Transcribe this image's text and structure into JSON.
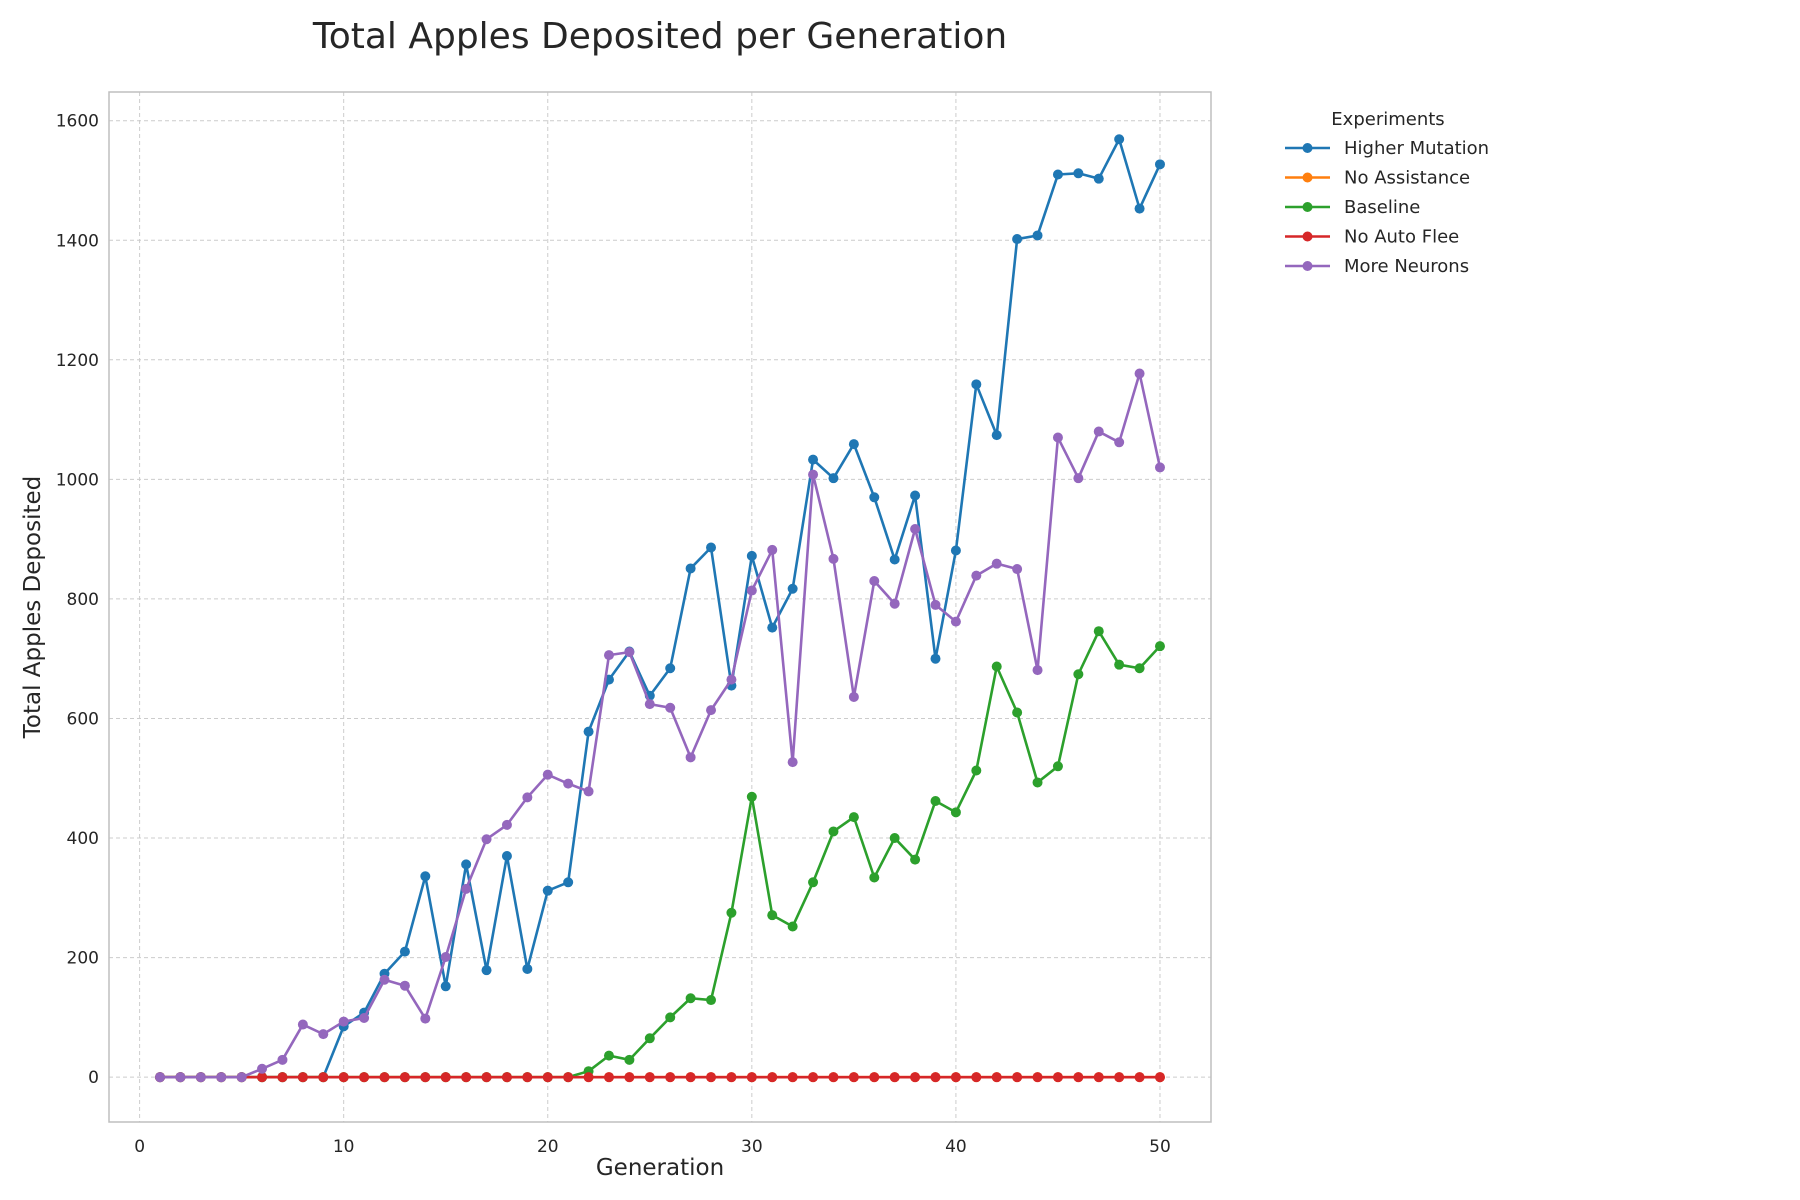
{
  "chart_data": {
    "type": "line",
    "title": "Total Apples Deposited per Generation",
    "xlabel": "Generation",
    "ylabel": "Total Apples Deposited",
    "xlim": [
      -1.5,
      52.5
    ],
    "ylim": [
      -75,
      1648
    ],
    "xticks": [
      0,
      10,
      20,
      30,
      40,
      50
    ],
    "yticks": [
      0,
      200,
      400,
      600,
      800,
      1000,
      1200,
      1400,
      1600
    ],
    "grid": true,
    "legend_title": "Experiments",
    "legend_position": "outside-top-right",
    "x": [
      1,
      2,
      3,
      4,
      5,
      6,
      7,
      8,
      9,
      10,
      11,
      12,
      13,
      14,
      15,
      16,
      17,
      18,
      19,
      20,
      21,
      22,
      23,
      24,
      25,
      26,
      27,
      28,
      29,
      30,
      31,
      32,
      33,
      34,
      35,
      36,
      37,
      38,
      39,
      40,
      41,
      42,
      43,
      44,
      45,
      46,
      47,
      48,
      49,
      50
    ],
    "series": [
      {
        "name": "Higher Mutation",
        "color": "#1f77b4",
        "values": [
          0,
          0,
          0,
          0,
          0,
          0,
          0,
          0,
          0,
          85,
          108,
          173,
          210,
          336,
          152,
          356,
          179,
          370,
          181,
          312,
          326,
          578,
          665,
          712,
          638,
          684,
          851,
          886,
          655,
          872,
          752,
          817,
          1033,
          1002,
          1059,
          970,
          866,
          973,
          700,
          881,
          1159,
          1074,
          1402,
          1408,
          1510,
          1512,
          1503,
          1569,
          1453,
          1527
        ]
      },
      {
        "name": "No Assistance",
        "color": "#ff7f0e",
        "values": [
          0,
          0,
          0,
          0,
          0,
          0,
          0,
          0,
          0,
          0,
          0,
          0,
          0,
          0,
          0,
          0,
          0,
          0,
          0,
          0,
          0,
          0,
          0,
          0,
          0,
          0,
          0,
          0,
          0,
          0,
          0,
          0,
          0,
          0,
          0,
          0,
          0,
          0,
          0,
          0,
          0,
          0,
          0,
          0,
          0,
          0,
          0,
          0,
          0,
          0
        ]
      },
      {
        "name": "Baseline",
        "color": "#2ca02c",
        "values": [
          0,
          0,
          0,
          0,
          0,
          0,
          0,
          0,
          0,
          0,
          0,
          0,
          0,
          0,
          0,
          0,
          0,
          0,
          0,
          0,
          0,
          10,
          36,
          29,
          65,
          100,
          132,
          129,
          275,
          469,
          271,
          252,
          326,
          411,
          435,
          334,
          400,
          364,
          462,
          443,
          513,
          687,
          610,
          493,
          520,
          674,
          746,
          690,
          684,
          721
        ]
      },
      {
        "name": "No Auto Flee",
        "color": "#d62728",
        "values": [
          0,
          0,
          0,
          0,
          0,
          0,
          0,
          0,
          0,
          0,
          0,
          0,
          0,
          0,
          0,
          0,
          0,
          0,
          0,
          0,
          0,
          0,
          0,
          0,
          0,
          0,
          0,
          0,
          0,
          0,
          0,
          0,
          0,
          0,
          0,
          0,
          0,
          0,
          0,
          0,
          0,
          0,
          0,
          0,
          0,
          0,
          0,
          0,
          0,
          0
        ]
      },
      {
        "name": "More Neurons",
        "color": "#9467bd",
        "values": [
          0,
          0,
          0,
          0,
          0,
          14,
          29,
          88,
          72,
          93,
          99,
          163,
          153,
          98,
          201,
          315,
          398,
          422,
          468,
          506,
          491,
          478,
          706,
          711,
          624,
          618,
          535,
          614,
          665,
          814,
          882,
          527,
          1008,
          867,
          636,
          830,
          792,
          917,
          790,
          762,
          839,
          859,
          850,
          681,
          1070,
          1002,
          1080,
          1062,
          1177,
          1020
        ]
      }
    ]
  }
}
